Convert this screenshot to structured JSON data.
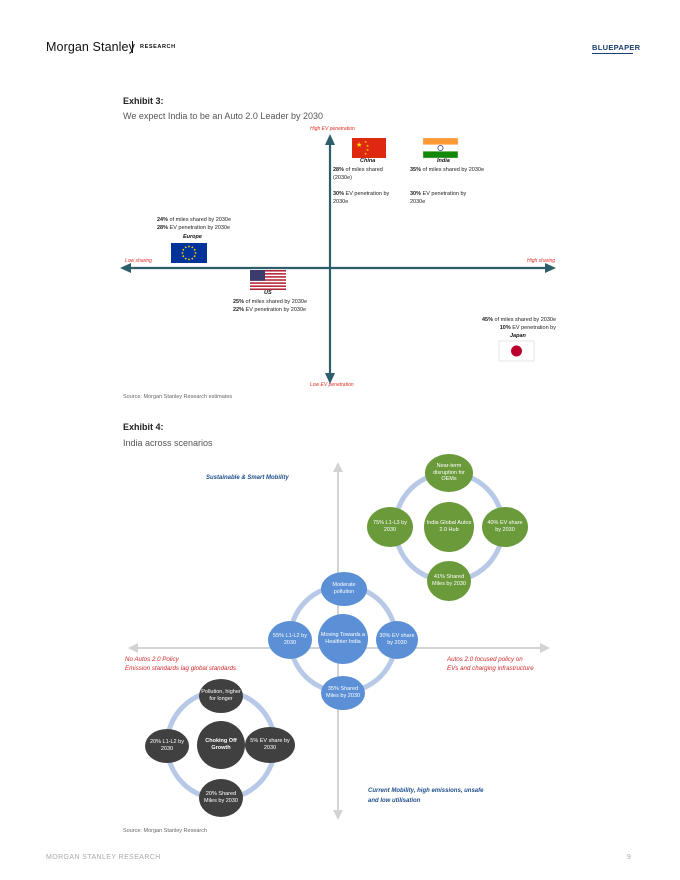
{
  "header": {
    "brand": "Morgan Stanley",
    "brand_sub": "RESEARCH",
    "doc_type": "BLUEPAPER"
  },
  "exhibit3": {
    "label": "Exhibit 3:",
    "title": "We expect India to be an Auto 2.0 Leader by 2030",
    "axis": {
      "top": "High EV penetration",
      "bottom": "Low EV penetration",
      "left": "Low sharing",
      "right": "High sharing"
    },
    "china": {
      "name": "China",
      "l1_bold": "28%",
      "l1_rest": " of miles shared",
      "l2": "(2030e)",
      "l3_bold": "30%",
      "l3_rest": " EV penetration by",
      "l4": "2030e"
    },
    "india": {
      "name": "India",
      "l1_bold": "35%",
      "l1_rest": " of miles shared by 2030e",
      "l3_bold": "30%",
      "l3_rest": " EV penetration by",
      "l4": "2030e"
    },
    "europe": {
      "name": "Europe",
      "l1_bold": "24%",
      "l1_rest": " of miles shared by 2030e",
      "l2_bold": "28%",
      "l2_rest": " EV penetration by 2030e"
    },
    "us": {
      "name": "US",
      "l1_bold": "25%",
      "l1_rest": " of miles shared by 2030e",
      "l2_bold": "22%",
      "l2_rest": " EV penetration by 2030e"
    },
    "japan": {
      "name": "Japan",
      "l1_bold": "45%",
      "l1_rest": " of miles shared by 2030e",
      "l2_bold": "10%",
      "l2_rest": " EV penetration by"
    },
    "source": "Source: Morgan Stanley Research estimates"
  },
  "exhibit4": {
    "label": "Exhibit 4:",
    "title": "India across scenarios",
    "top_label": "Sustainable & Smart Mobility",
    "bottom_label_1": "Current Mobility, high emissions, unsafe",
    "bottom_label_2": "and low utilisation",
    "left_label_1": "No Autos 2.0 Policy",
    "left_label_2": "Emission standards lag global standards",
    "right_label_1": "Autos 2.0 focused policy on",
    "right_label_2": "EVs and charging infrastructure",
    "green": {
      "center": "India Global Autos 2.0 Hub",
      "top": "Near-term disruption for OEMs",
      "left": "75% L1-L3 by 2030",
      "right": "40% EV share by 2030",
      "bottom": "41% Shared Miles by 2030"
    },
    "blue": {
      "center": "Moving Towards a Healthier India",
      "top": "Moderate pollution",
      "left": "55% L1-L2 by 2030",
      "right": "30% EV share by 2030",
      "bottom": "35% Shared Miles by 2030"
    },
    "dark": {
      "center": "Choking Off Growth",
      "top": "Pollution, higher for longer",
      "left": "20% L1-L2 by 2030",
      "right": "5% EV share by 2030",
      "bottom": "20% Shared Miles by 2030"
    },
    "source": "Source: Morgan Stanley Research"
  },
  "footer": {
    "left": "MORGAN STANLEY RESEARCH",
    "page": "9"
  }
}
